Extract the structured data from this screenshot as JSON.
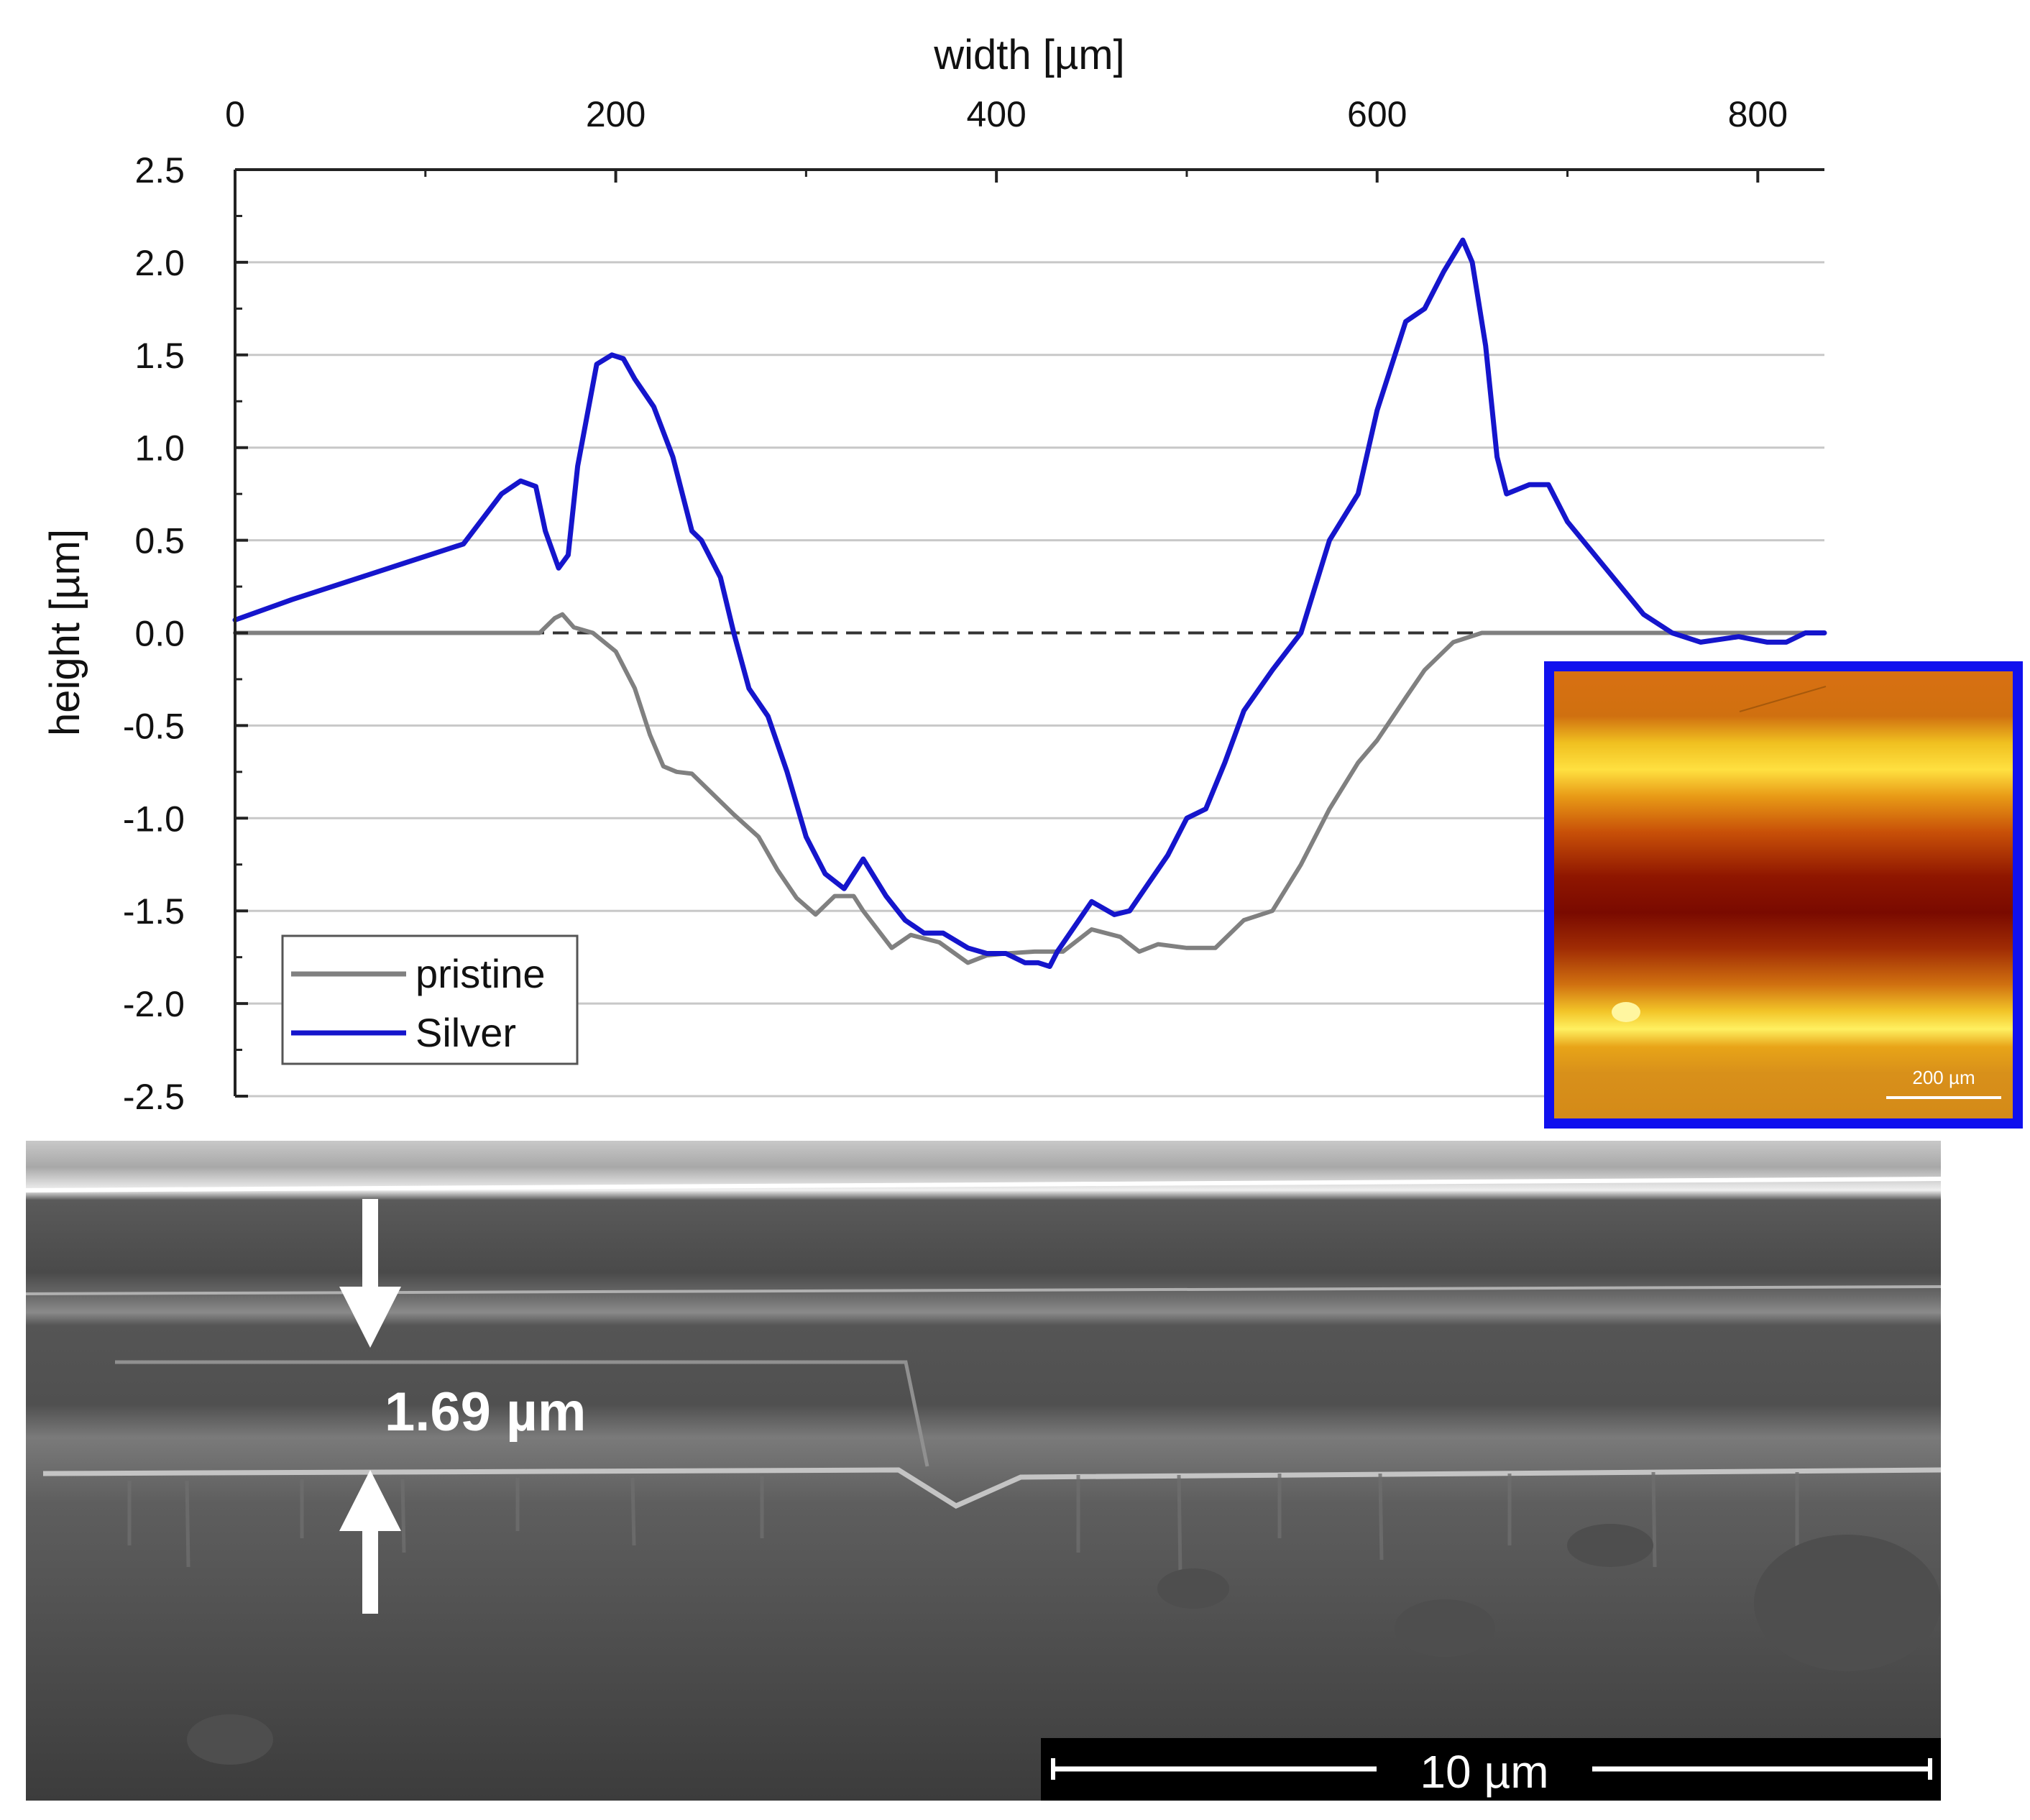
{
  "chart_data": {
    "type": "line",
    "title": "",
    "xlabel": "width [µm]",
    "ylabel": "height [µm]",
    "xlim": [
      0,
      835
    ],
    "ylim": [
      -2.5,
      2.5
    ],
    "x_ticks": [
      0,
      200,
      400,
      600,
      800
    ],
    "x_tick_labels": [
      "0",
      "200",
      "400",
      "600",
      "800"
    ],
    "y_ticks": [
      2.5,
      2.0,
      1.5,
      1.0,
      0.5,
      0.0,
      -0.5,
      -1.0,
      -1.5,
      -2.0,
      -2.5
    ],
    "y_tick_labels": [
      "2.5",
      "2.0",
      "1.5",
      "1.0",
      "0.5",
      "0.0",
      "-0.5",
      "-1.0",
      "-1.5",
      "-2.0",
      "-2.5"
    ],
    "grid": true,
    "legend_position": "bottom-left",
    "reference_line": {
      "y": 0.0,
      "style": "dashed"
    },
    "series": [
      {
        "name": "pristine",
        "color": "#808080",
        "x": [
          0,
          160,
          168,
          172,
          178,
          188,
          200,
          210,
          218,
          225,
          232,
          240,
          250,
          262,
          275,
          285,
          295,
          305,
          315,
          325,
          330,
          345,
          355,
          370,
          385,
          395,
          405,
          420,
          435,
          450,
          465,
          475,
          485,
          500,
          515,
          530,
          545,
          560,
          575,
          590,
          600,
          615,
          625,
          640,
          655,
          660,
          835
        ],
        "y": [
          0.0,
          0.0,
          0.08,
          0.1,
          0.03,
          0.0,
          -0.1,
          -0.3,
          -0.55,
          -0.72,
          -0.75,
          -0.76,
          -0.86,
          -0.98,
          -1.1,
          -1.28,
          -1.43,
          -1.52,
          -1.42,
          -1.42,
          -1.5,
          -1.7,
          -1.63,
          -1.67,
          -1.78,
          -1.74,
          -1.73,
          -1.72,
          -1.72,
          -1.6,
          -1.64,
          -1.72,
          -1.68,
          -1.7,
          -1.7,
          -1.55,
          -1.5,
          -1.25,
          -0.95,
          -0.7,
          -0.58,
          -0.35,
          -0.2,
          -0.05,
          0.0,
          0.0,
          0.0
        ]
      },
      {
        "name": "Silver",
        "color": "#1515cc",
        "x": [
          0,
          30,
          60,
          90,
          120,
          140,
          150,
          158,
          163,
          170,
          175,
          180,
          190,
          198,
          204,
          210,
          220,
          230,
          240,
          245,
          255,
          262,
          270,
          280,
          290,
          300,
          310,
          320,
          330,
          342,
          352,
          362,
          372,
          385,
          395,
          405,
          415,
          422,
          428,
          432,
          440,
          450,
          462,
          470,
          480,
          490,
          500,
          510,
          520,
          530,
          545,
          560,
          575,
          590,
          600,
          615,
          625,
          635,
          645,
          650,
          657,
          663,
          668,
          680,
          690,
          700,
          720,
          740,
          755,
          770,
          790,
          805,
          815,
          825,
          835
        ],
        "y": [
          0.07,
          0.18,
          0.28,
          0.38,
          0.48,
          0.75,
          0.82,
          0.79,
          0.55,
          0.35,
          0.42,
          0.9,
          1.45,
          1.5,
          1.48,
          1.37,
          1.22,
          0.95,
          0.55,
          0.5,
          0.3,
          0.0,
          -0.3,
          -0.45,
          -0.75,
          -1.1,
          -1.3,
          -1.38,
          -1.22,
          -1.42,
          -1.55,
          -1.62,
          -1.62,
          -1.7,
          -1.73,
          -1.73,
          -1.78,
          -1.78,
          -1.8,
          -1.72,
          -1.6,
          -1.45,
          -1.52,
          -1.5,
          -1.35,
          -1.2,
          -1.0,
          -0.95,
          -0.7,
          -0.42,
          -0.2,
          0.0,
          0.5,
          0.75,
          1.2,
          1.68,
          1.75,
          1.95,
          2.12,
          2.0,
          1.55,
          0.95,
          0.75,
          0.8,
          0.8,
          0.6,
          0.35,
          0.1,
          0.0,
          -0.05,
          -0.02,
          -0.05,
          -0.05,
          0.0,
          0.0
        ]
      }
    ]
  },
  "inset": {
    "scale_label": "200 µm",
    "border_color": "#1010ee"
  },
  "sem": {
    "thickness_label": "1.69 µm",
    "scale_label": "10 µm"
  }
}
